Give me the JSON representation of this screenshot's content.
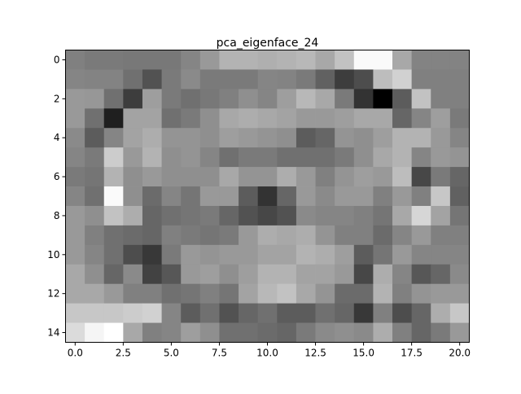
{
  "chart_data": {
    "type": "heatmap",
    "title": "pca_eigenface_24",
    "xlabel": "",
    "ylabel": "",
    "colormap": "gray",
    "xlim": [
      -0.5,
      20.5
    ],
    "ylim": [
      14.5,
      -0.5
    ],
    "xticks": [
      0.0,
      2.5,
      5.0,
      7.5,
      10.0,
      12.5,
      15.0,
      17.5,
      20.0
    ],
    "xtick_labels": [
      "0.0",
      "2.5",
      "5.0",
      "7.5",
      "10.0",
      "12.5",
      "15.0",
      "17.5",
      "20.0"
    ],
    "yticks": [
      0,
      2,
      4,
      6,
      8,
      10,
      12,
      14
    ],
    "ytick_labels": [
      "0",
      "2",
      "4",
      "6",
      "8",
      "10",
      "12",
      "14"
    ],
    "grid": false,
    "rows": 15,
    "cols": 21,
    "values": [
      [
        125,
        120,
        120,
        118,
        118,
        118,
        130,
        150,
        175,
        175,
        172,
        175,
        180,
        165,
        190,
        245,
        245,
        165,
        128,
        128,
        128
      ],
      [
        130,
        128,
        128,
        110,
        80,
        120,
        135,
        120,
        120,
        120,
        130,
        128,
        120,
        95,
        60,
        75,
        185,
        205,
        125,
        125,
        125
      ],
      [
        150,
        148,
        110,
        60,
        155,
        120,
        110,
        118,
        125,
        140,
        130,
        155,
        180,
        165,
        120,
        50,
        0,
        90,
        190,
        125,
        125
      ],
      [
        150,
        110,
        30,
        160,
        160,
        110,
        120,
        140,
        165,
        170,
        165,
        160,
        150,
        150,
        155,
        165,
        165,
        100,
        130,
        155,
        120
      ],
      [
        135,
        90,
        130,
        160,
        170,
        145,
        145,
        140,
        155,
        150,
        145,
        140,
        90,
        100,
        145,
        140,
        155,
        175,
        175,
        150,
        130
      ],
      [
        130,
        120,
        200,
        150,
        175,
        140,
        145,
        130,
        110,
        120,
        120,
        110,
        110,
        110,
        120,
        140,
        165,
        175,
        130,
        150,
        145
      ],
      [
        120,
        115,
        175,
        140,
        150,
        140,
        140,
        140,
        165,
        145,
        145,
        170,
        150,
        125,
        145,
        155,
        150,
        185,
        70,
        120,
        100
      ],
      [
        130,
        110,
        245,
        140,
        105,
        130,
        115,
        150,
        150,
        90,
        50,
        100,
        150,
        135,
        150,
        150,
        125,
        150,
        125,
        195,
        95
      ],
      [
        150,
        140,
        190,
        170,
        100,
        110,
        115,
        120,
        100,
        80,
        70,
        80,
        135,
        130,
        130,
        125,
        115,
        165,
        210,
        160,
        115
      ],
      [
        150,
        125,
        110,
        105,
        100,
        125,
        120,
        115,
        120,
        150,
        170,
        165,
        170,
        145,
        125,
        125,
        105,
        130,
        150,
        125,
        125
      ],
      [
        150,
        130,
        110,
        75,
        55,
        120,
        150,
        145,
        150,
        150,
        160,
        160,
        175,
        170,
        155,
        90,
        115,
        150,
        130,
        130,
        130
      ],
      [
        165,
        140,
        100,
        135,
        65,
        85,
        150,
        155,
        140,
        155,
        175,
        175,
        160,
        160,
        150,
        70,
        170,
        130,
        85,
        100,
        135
      ],
      [
        165,
        165,
        150,
        125,
        125,
        110,
        115,
        125,
        115,
        160,
        180,
        190,
        165,
        145,
        105,
        105,
        175,
        125,
        145,
        150,
        150
      ],
      [
        195,
        195,
        195,
        200,
        205,
        130,
        90,
        110,
        80,
        100,
        110,
        90,
        90,
        110,
        100,
        55,
        125,
        75,
        100,
        170,
        195
      ],
      [
        215,
        240,
        250,
        165,
        125,
        130,
        155,
        140,
        110,
        110,
        105,
        100,
        120,
        135,
        140,
        135,
        170,
        125,
        100,
        120,
        150
      ]
    ]
  }
}
